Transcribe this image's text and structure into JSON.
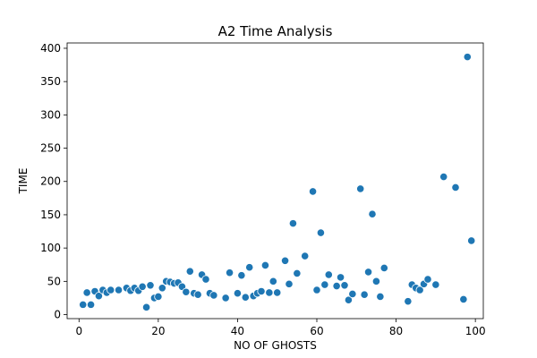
{
  "chart_data": {
    "type": "scatter",
    "title": "A2 Time Analysis",
    "xlabel": "NO OF GHOSTS",
    "ylabel": "TIME",
    "xlim": [
      -3,
      102
    ],
    "ylim": [
      -6,
      408
    ],
    "xticks": [
      0,
      20,
      40,
      60,
      80,
      100
    ],
    "yticks": [
      0,
      50,
      100,
      150,
      200,
      250,
      300,
      350,
      400
    ],
    "grid": false,
    "legend": "none",
    "marker_color": "#1f77b4",
    "points": [
      {
        "x": 1,
        "y": 15
      },
      {
        "x": 2,
        "y": 33
      },
      {
        "x": 3,
        "y": 15
      },
      {
        "x": 4,
        "y": 35
      },
      {
        "x": 5,
        "y": 28
      },
      {
        "x": 6,
        "y": 37
      },
      {
        "x": 7,
        "y": 33
      },
      {
        "x": 8,
        "y": 37
      },
      {
        "x": 10,
        "y": 37
      },
      {
        "x": 12,
        "y": 40
      },
      {
        "x": 13,
        "y": 36
      },
      {
        "x": 14,
        "y": 40
      },
      {
        "x": 15,
        "y": 36
      },
      {
        "x": 16,
        "y": 42
      },
      {
        "x": 17,
        "y": 11
      },
      {
        "x": 18,
        "y": 44
      },
      {
        "x": 19,
        "y": 25
      },
      {
        "x": 20,
        "y": 27
      },
      {
        "x": 21,
        "y": 40
      },
      {
        "x": 22,
        "y": 50
      },
      {
        "x": 23,
        "y": 49
      },
      {
        "x": 24,
        "y": 47
      },
      {
        "x": 25,
        "y": 48
      },
      {
        "x": 26,
        "y": 42
      },
      {
        "x": 27,
        "y": 34
      },
      {
        "x": 28,
        "y": 65
      },
      {
        "x": 29,
        "y": 32
      },
      {
        "x": 30,
        "y": 30
      },
      {
        "x": 31,
        "y": 60
      },
      {
        "x": 32,
        "y": 53
      },
      {
        "x": 33,
        "y": 32
      },
      {
        "x": 34,
        "y": 29
      },
      {
        "x": 37,
        "y": 25
      },
      {
        "x": 38,
        "y": 63
      },
      {
        "x": 40,
        "y": 32
      },
      {
        "x": 41,
        "y": 59
      },
      {
        "x": 42,
        "y": 26
      },
      {
        "x": 43,
        "y": 71
      },
      {
        "x": 44,
        "y": 28
      },
      {
        "x": 45,
        "y": 32
      },
      {
        "x": 46,
        "y": 35
      },
      {
        "x": 47,
        "y": 74
      },
      {
        "x": 48,
        "y": 33
      },
      {
        "x": 49,
        "y": 50
      },
      {
        "x": 50,
        "y": 33
      },
      {
        "x": 52,
        "y": 81
      },
      {
        "x": 53,
        "y": 46
      },
      {
        "x": 54,
        "y": 137
      },
      {
        "x": 55,
        "y": 62
      },
      {
        "x": 57,
        "y": 88
      },
      {
        "x": 59,
        "y": 185
      },
      {
        "x": 60,
        "y": 37
      },
      {
        "x": 61,
        "y": 123
      },
      {
        "x": 62,
        "y": 45
      },
      {
        "x": 63,
        "y": 60
      },
      {
        "x": 65,
        "y": 43
      },
      {
        "x": 66,
        "y": 56
      },
      {
        "x": 67,
        "y": 44
      },
      {
        "x": 68,
        "y": 22
      },
      {
        "x": 69,
        "y": 31
      },
      {
        "x": 71,
        "y": 189
      },
      {
        "x": 72,
        "y": 30
      },
      {
        "x": 73,
        "y": 64
      },
      {
        "x": 74,
        "y": 151
      },
      {
        "x": 75,
        "y": 50
      },
      {
        "x": 76,
        "y": 27
      },
      {
        "x": 77,
        "y": 70
      },
      {
        "x": 83,
        "y": 20
      },
      {
        "x": 84,
        "y": 45
      },
      {
        "x": 85,
        "y": 40
      },
      {
        "x": 86,
        "y": 37
      },
      {
        "x": 87,
        "y": 46
      },
      {
        "x": 88,
        "y": 53
      },
      {
        "x": 90,
        "y": 45
      },
      {
        "x": 92,
        "y": 207
      },
      {
        "x": 95,
        "y": 191
      },
      {
        "x": 97,
        "y": 23
      },
      {
        "x": 98,
        "y": 387
      },
      {
        "x": 99,
        "y": 111
      }
    ]
  }
}
